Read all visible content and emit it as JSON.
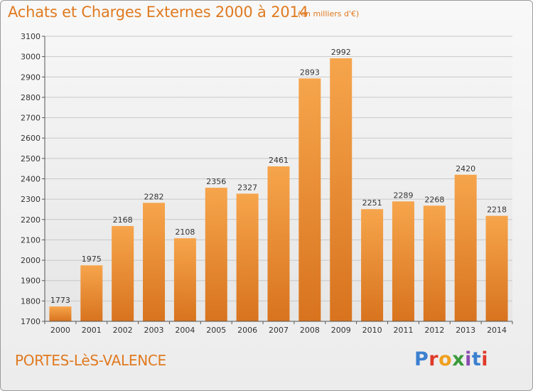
{
  "header": {
    "title": "Achats et Charges Externes 2000 à 2014",
    "subtitle": "(en milliers d'€)"
  },
  "footer": {
    "commune": "PORTES-LèS-VALENCE",
    "logo_text": "Proxiti",
    "logo_colors": [
      "#3b7fd0",
      "#e03a2a",
      "#f0a020",
      "#3a9a3a",
      "#8a4ab0",
      "#3b7fd0",
      "#e03a2a"
    ]
  },
  "colors": {
    "bar_light": "#f6a54c",
    "bar_dark": "#d8731e",
    "accent": "#e07a20",
    "grid": "#c8c8c8"
  },
  "chart_data": {
    "type": "bar",
    "categories": [
      "2000",
      "2001",
      "2002",
      "2003",
      "2004",
      "2005",
      "2006",
      "2007",
      "2008",
      "2009",
      "2010",
      "2011",
      "2012",
      "2013",
      "2014"
    ],
    "values": [
      1773,
      1975,
      2168,
      2282,
      2108,
      2356,
      2327,
      2461,
      2893,
      2992,
      2251,
      2289,
      2268,
      2420,
      2218
    ],
    "ylim": [
      1700,
      3100
    ],
    "yticks": [
      1700,
      1800,
      1900,
      2000,
      2100,
      2200,
      2300,
      2400,
      2500,
      2600,
      2700,
      2800,
      2900,
      3000,
      3100
    ],
    "grid": true,
    "title": "Achats et Charges Externes 2000 à 2014",
    "xlabel": "",
    "ylabel": ""
  }
}
